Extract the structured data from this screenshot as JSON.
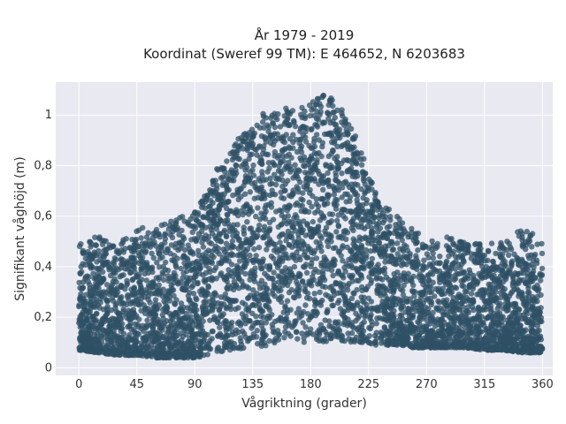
{
  "chart_data": {
    "type": "scatter",
    "title_line1": "År 1979 - 2019",
    "title_line2": "Koordinat (Sweref 99 TM): E 464652, N 6203683",
    "xlabel": "Vågriktning (grader)",
    "ylabel": "Signifikant våghöjd (m)",
    "xlim": [
      -18,
      368
    ],
    "ylim": [
      -0.03,
      1.13
    ],
    "x_ticks": [
      0,
      45,
      90,
      135,
      180,
      225,
      270,
      315,
      360
    ],
    "x_tick_labels": [
      "0",
      "45",
      "90",
      "135",
      "180",
      "225",
      "270",
      "315",
      "360"
    ],
    "y_ticks": [
      0,
      0.2,
      0.4,
      0.6,
      0.8,
      1.0
    ],
    "y_tick_labels": [
      "0",
      "0,2",
      "0,4",
      "0,6",
      "0,8",
      "1"
    ],
    "grid": true,
    "marker_color": "#2f5066",
    "plot_background": "#e8e9f1",
    "envelope": {
      "direction_deg": [
        0,
        15,
        30,
        45,
        60,
        75,
        90,
        100,
        110,
        120,
        130,
        140,
        150,
        160,
        170,
        180,
        190,
        200,
        210,
        220,
        230,
        240,
        250,
        260,
        270,
        285,
        300,
        315,
        330,
        345,
        360
      ],
      "lower_height_m": [
        0.07,
        0.06,
        0.05,
        0.05,
        0.04,
        0.04,
        0.04,
        0.05,
        0.06,
        0.07,
        0.08,
        0.08,
        0.09,
        0.09,
        0.1,
        0.1,
        0.1,
        0.1,
        0.1,
        0.1,
        0.09,
        0.09,
        0.09,
        0.08,
        0.08,
        0.08,
        0.08,
        0.07,
        0.07,
        0.06,
        0.06
      ],
      "upper_height_m": [
        0.5,
        0.52,
        0.5,
        0.56,
        0.55,
        0.6,
        0.62,
        0.7,
        0.82,
        0.88,
        0.95,
        1.0,
        1.02,
        1.03,
        1.02,
        1.05,
        1.08,
        1.06,
        0.98,
        0.85,
        0.7,
        0.63,
        0.6,
        0.55,
        0.5,
        0.52,
        0.5,
        0.49,
        0.5,
        0.56,
        0.5
      ]
    }
  }
}
